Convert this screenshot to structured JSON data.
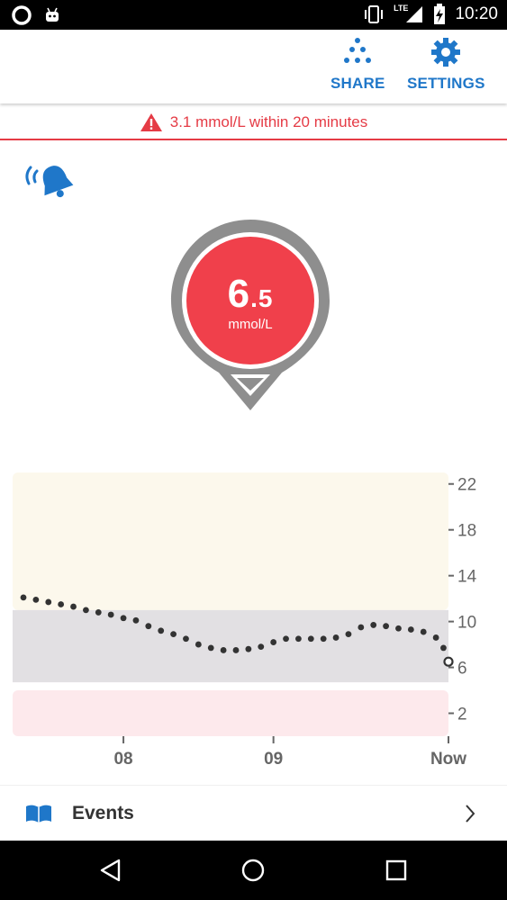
{
  "status_bar": {
    "time": "10:20",
    "network": "LTE",
    "icons": [
      "notification-ring-icon",
      "android-icon",
      "vibrate-icon",
      "signal-icon",
      "battery-charging-icon"
    ]
  },
  "toolbar": {
    "share_label": "SHARE",
    "settings_label": "SETTINGS"
  },
  "alert": {
    "text": "3.1 mmol/L within 20 minutes",
    "icon": "warning-triangle-icon",
    "color": "#e53b45"
  },
  "reading": {
    "integer": "6",
    "decimal": ".5",
    "unit": "mmol/L",
    "color": "#f0404b",
    "trend": "down"
  },
  "chart_data": {
    "type": "scatter",
    "x_labels": [
      "08",
      "09",
      "Now"
    ],
    "y_ticks": [
      22,
      18,
      14,
      10,
      6,
      2
    ],
    "ylim": [
      0,
      23
    ],
    "bands": [
      {
        "name": "high",
        "from": 11,
        "to": 23,
        "color": "#fcf8ec"
      },
      {
        "name": "target",
        "from": 4.7,
        "to": 11,
        "color": "#e2e0e3"
      },
      {
        "name": "low",
        "from": 0,
        "to": 4,
        "color": "#fde9ec"
      }
    ],
    "x_range_minutes": [
      -170,
      0
    ],
    "x_label_minutes": [
      -130,
      -70,
      0
    ],
    "points": [
      {
        "x": -170,
        "y": 12.1
      },
      {
        "x": -165,
        "y": 11.9
      },
      {
        "x": -160,
        "y": 11.7
      },
      {
        "x": -155,
        "y": 11.5
      },
      {
        "x": -150,
        "y": 11.3
      },
      {
        "x": -145,
        "y": 11.0
      },
      {
        "x": -140,
        "y": 10.8
      },
      {
        "x": -135,
        "y": 10.6
      },
      {
        "x": -130,
        "y": 10.3
      },
      {
        "x": -125,
        "y": 10.1
      },
      {
        "x": -120,
        "y": 9.6
      },
      {
        "x": -115,
        "y": 9.2
      },
      {
        "x": -110,
        "y": 8.9
      },
      {
        "x": -105,
        "y": 8.5
      },
      {
        "x": -100,
        "y": 8.0
      },
      {
        "x": -95,
        "y": 7.7
      },
      {
        "x": -90,
        "y": 7.5
      },
      {
        "x": -85,
        "y": 7.5
      },
      {
        "x": -80,
        "y": 7.6
      },
      {
        "x": -75,
        "y": 7.8
      },
      {
        "x": -70,
        "y": 8.2
      },
      {
        "x": -65,
        "y": 8.5
      },
      {
        "x": -60,
        "y": 8.5
      },
      {
        "x": -55,
        "y": 8.5
      },
      {
        "x": -50,
        "y": 8.5
      },
      {
        "x": -45,
        "y": 8.6
      },
      {
        "x": -40,
        "y": 8.9
      },
      {
        "x": -35,
        "y": 9.5
      },
      {
        "x": -30,
        "y": 9.7
      },
      {
        "x": -25,
        "y": 9.6
      },
      {
        "x": -20,
        "y": 9.4
      },
      {
        "x": -15,
        "y": 9.3
      },
      {
        "x": -10,
        "y": 9.1
      },
      {
        "x": -5,
        "y": 8.6
      },
      {
        "x": -2,
        "y": 7.7
      }
    ],
    "current": {
      "x": 0,
      "y": 6.5
    }
  },
  "events": {
    "label": "Events"
  },
  "nav_bar": {
    "icons": [
      "back-icon",
      "home-icon",
      "recents-icon"
    ]
  }
}
